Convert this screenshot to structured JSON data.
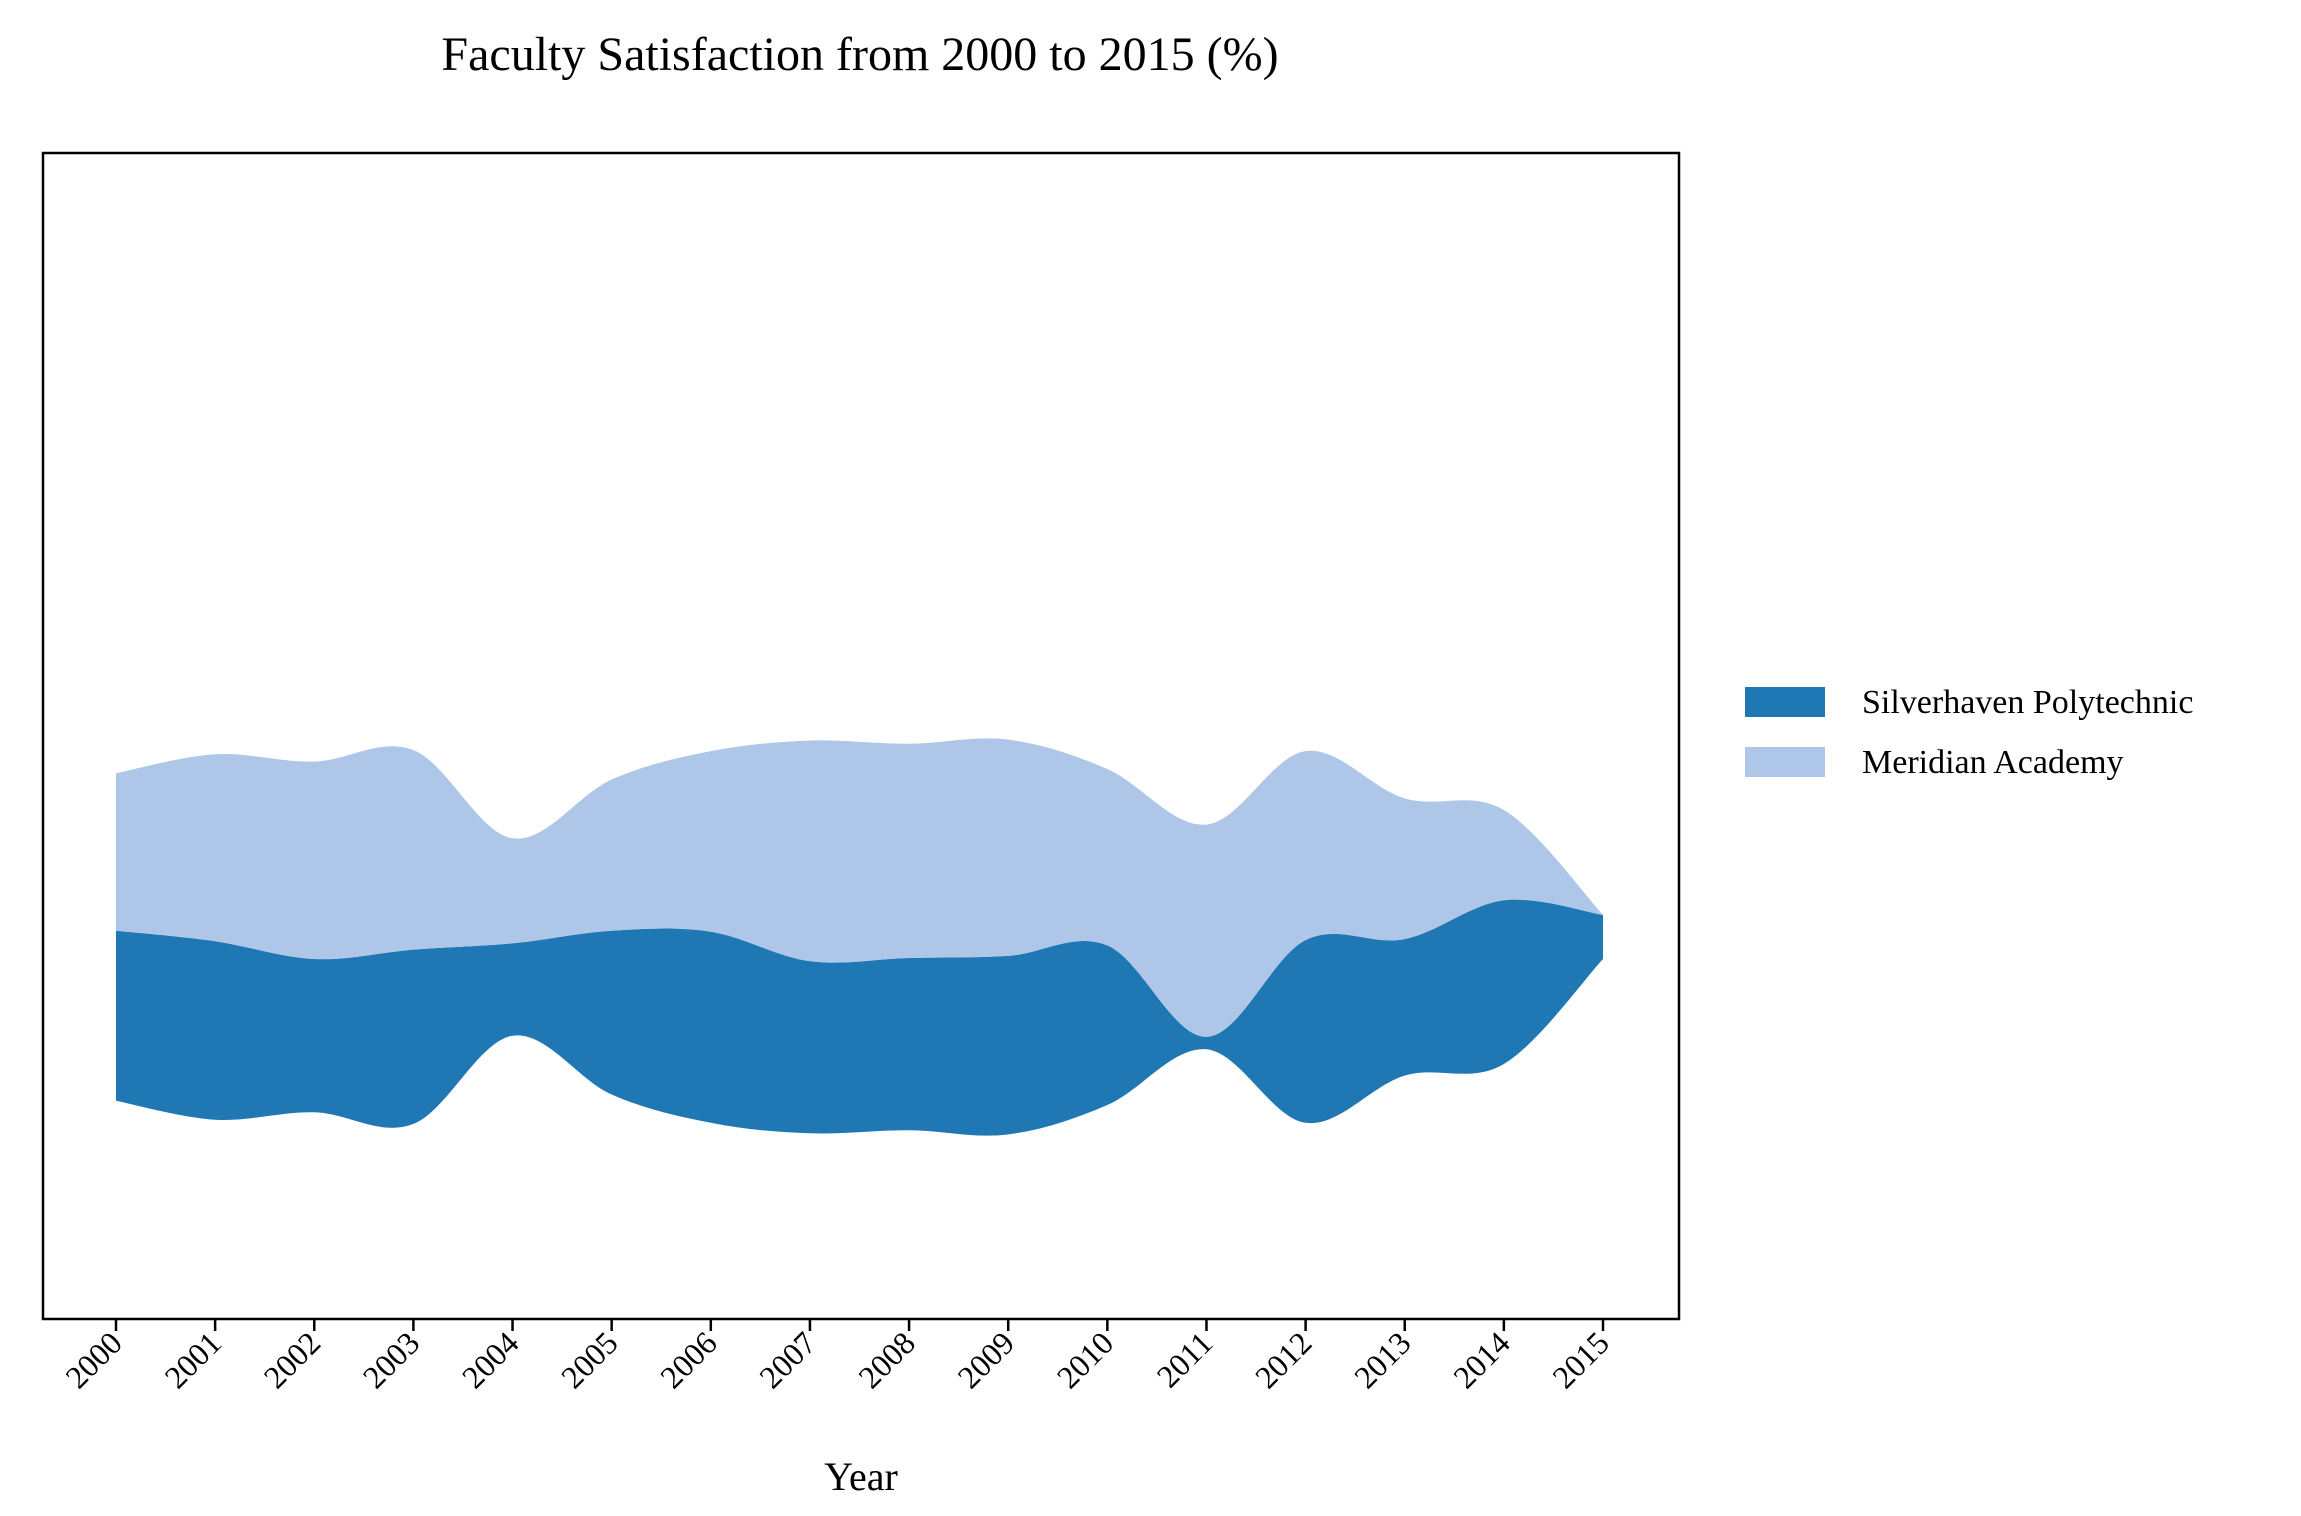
{
  "chart_data": {
    "type": "area",
    "subtype": "streamgraph",
    "title": "Faculty Satisfaction from 2000 to 2015 (%)",
    "xlabel": "Year",
    "ylabel": "",
    "x": [
      "2000",
      "2001",
      "2002",
      "2003",
      "2004",
      "2005",
      "2006",
      "2007",
      "2008",
      "2009",
      "2010",
      "2011",
      "2012",
      "2013",
      "2014",
      "2015"
    ],
    "series": [
      {
        "name": "Silverhaven Polytechnic",
        "color": "#1f77b4",
        "values": [
          81,
          85,
          73,
          83,
          44,
          78,
          91,
          82,
          82,
          85,
          76,
          6,
          87,
          65,
          78,
          21
        ]
      },
      {
        "name": "Meridian Academy",
        "color": "#aec7e8",
        "values": [
          75,
          89,
          94,
          95,
          50,
          72,
          86,
          105,
          102,
          103,
          84,
          101,
          90,
          67,
          43,
          0
        ]
      }
    ],
    "baseline": "symmetric (wiggle-centered)",
    "y_axis_visible": false,
    "grid": false,
    "legend_position": "outside-right"
  }
}
